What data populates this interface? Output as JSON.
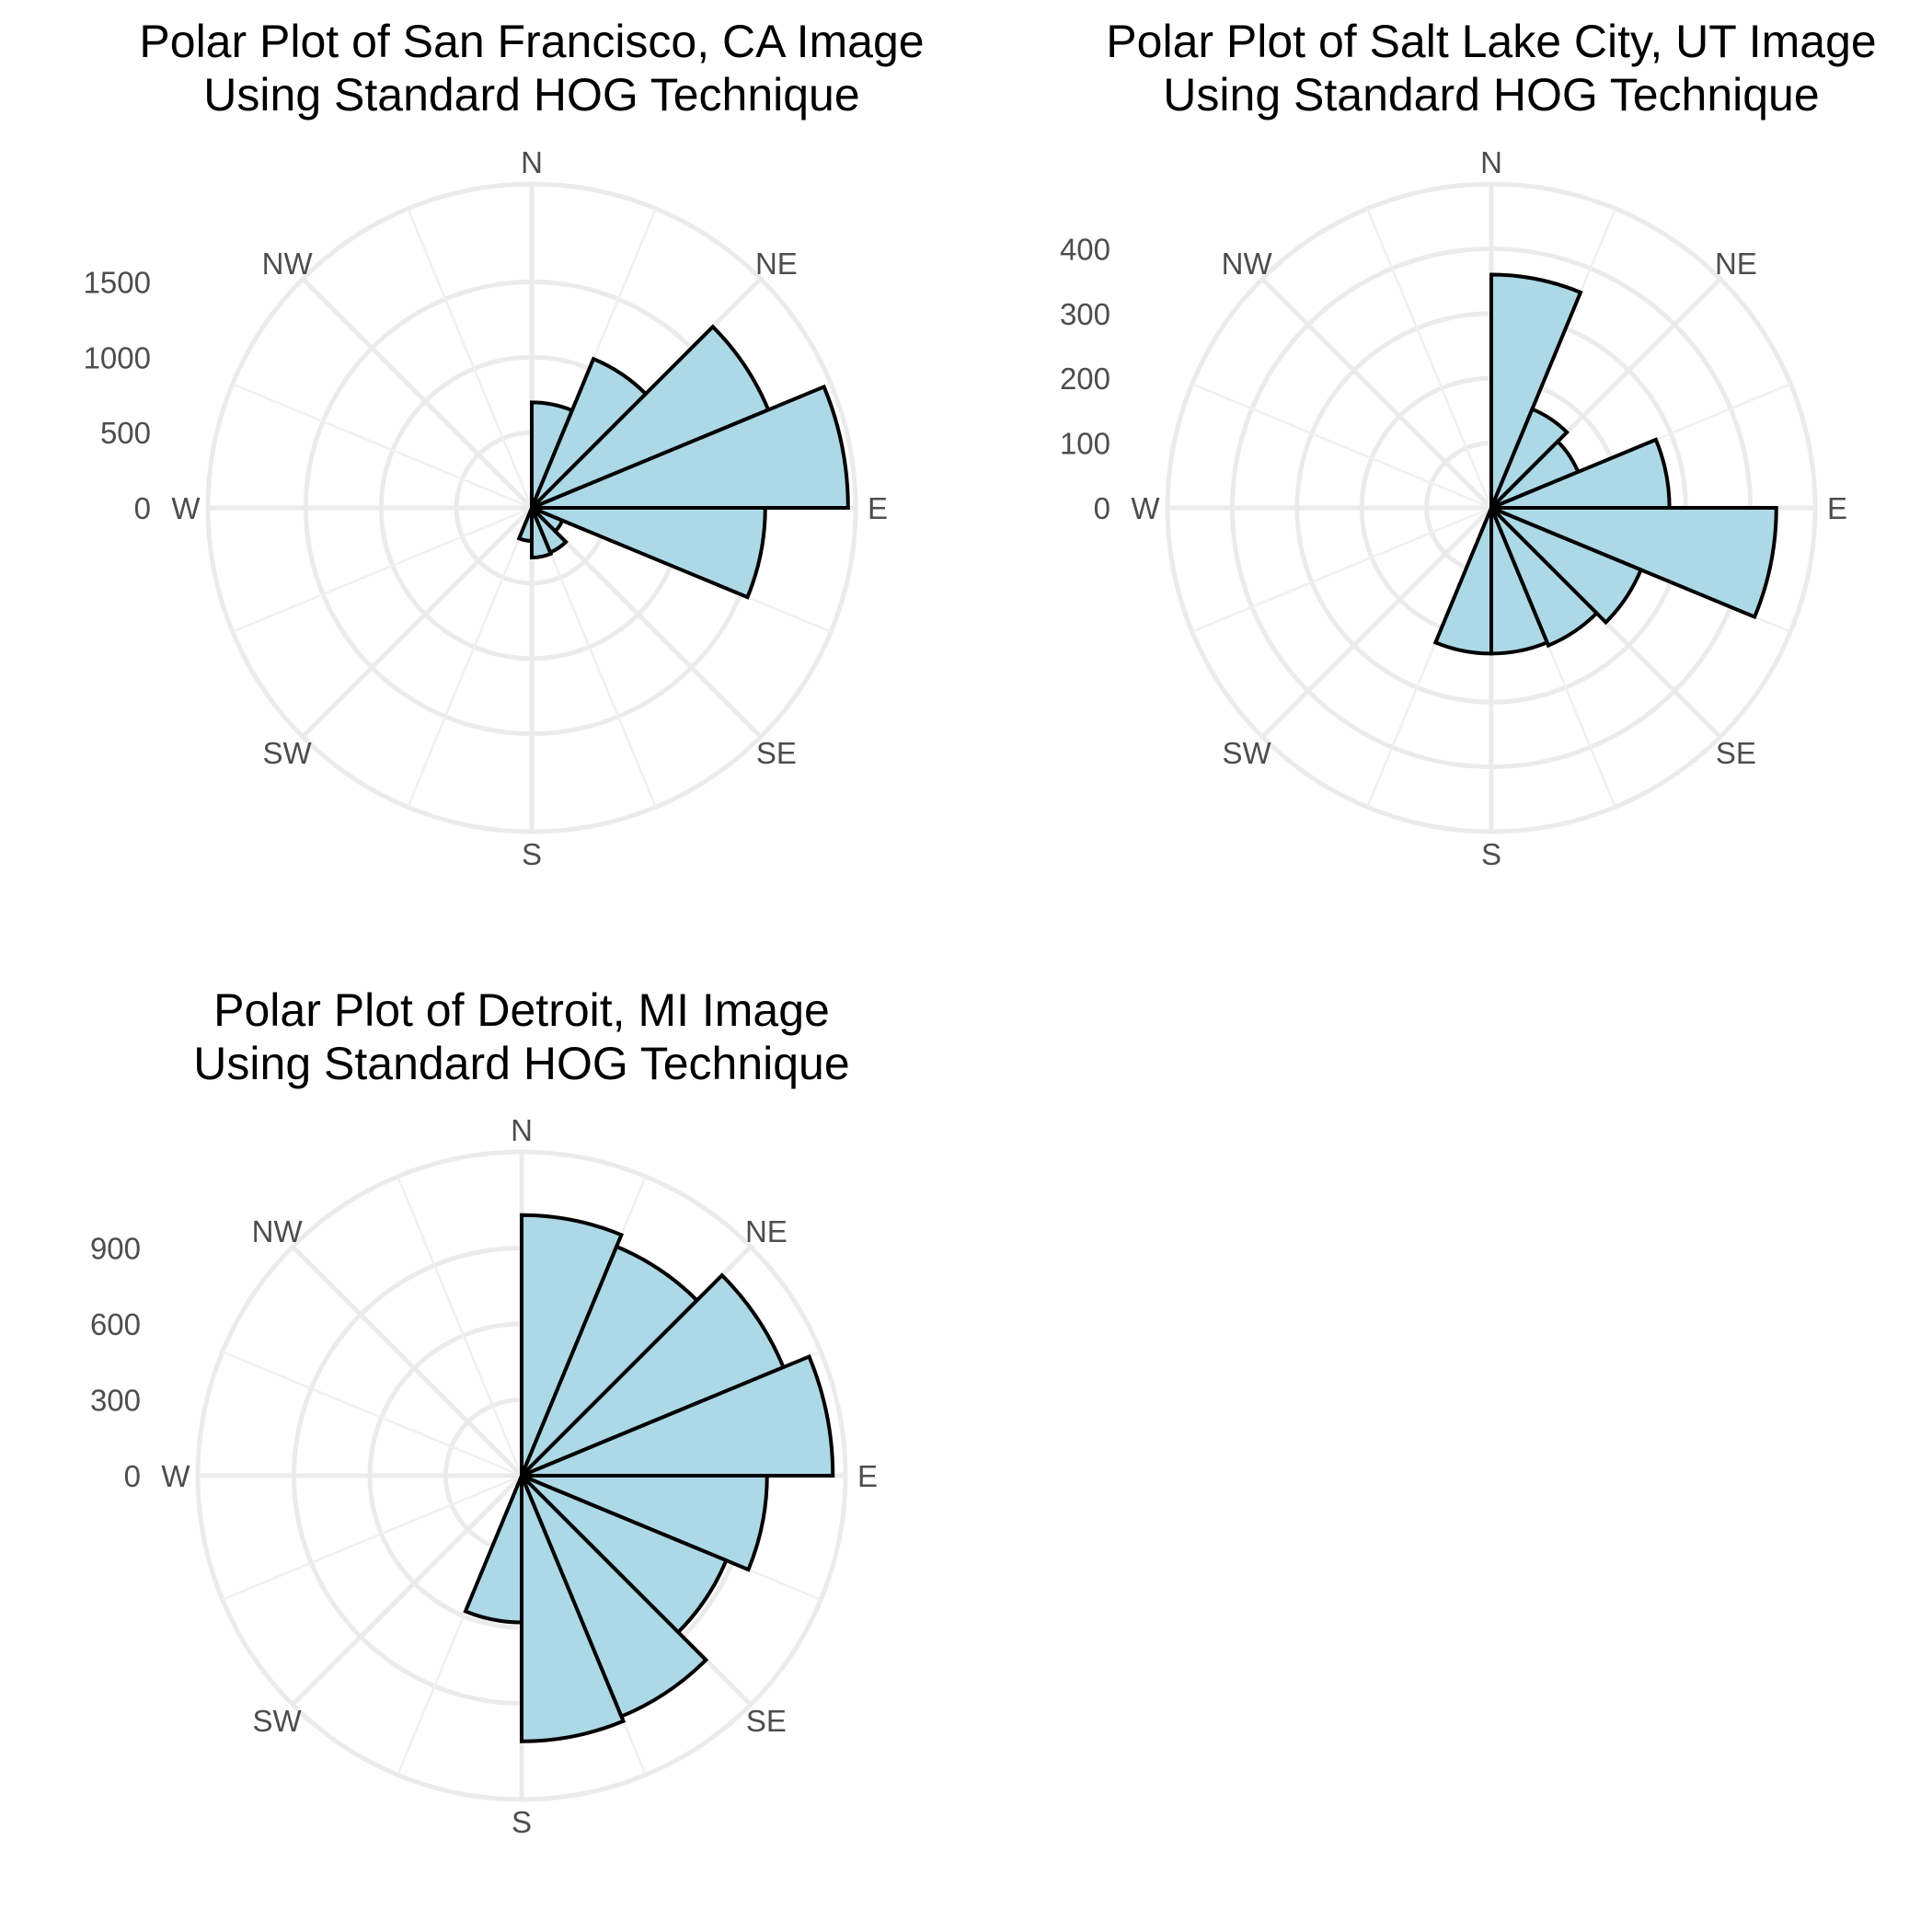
{
  "colors": {
    "bar_fill": "#add8e6",
    "bar_stroke": "#000000",
    "grid": "#ebebeb",
    "background": "#ffffff"
  },
  "chart_data": [
    {
      "type": "bar",
      "coord": "polar",
      "title": [
        "Polar Plot of San Francisco, CA Image",
        "Using Standard HOG Technique"
      ],
      "direction_labels": [
        "N",
        "NE",
        "E",
        "SE",
        "S",
        "SW",
        "W",
        "NW"
      ],
      "bin_count": 16,
      "values": [
        700,
        1070,
        1700,
        2100,
        1550,
        220,
        320,
        330,
        220,
        0,
        0,
        0,
        0,
        0,
        0,
        0
      ],
      "r_ticks": [
        "0",
        "500",
        "1000",
        "1500"
      ],
      "rlim": [
        0,
        2150
      ],
      "grid": true
    },
    {
      "type": "bar",
      "coord": "polar",
      "title": [
        "Polar Plot of Salt Lake City, UT Image",
        "Using Standard HOG Technique"
      ],
      "direction_labels": [
        "N",
        "NE",
        "E",
        "SE",
        "S",
        "SW",
        "W",
        "NW"
      ],
      "bin_count": 16,
      "values": [
        360,
        165,
        145,
        275,
        440,
        250,
        230,
        225,
        225,
        0,
        0,
        0,
        0,
        0,
        0,
        0
      ],
      "r_ticks": [
        "0",
        "100",
        "200",
        "300",
        "400"
      ],
      "rlim": [
        0,
        500
      ],
      "grid": true
    },
    {
      "type": "bar",
      "coord": "polar",
      "title": [
        "Polar Plot of Detroit, MI Image",
        "Using Standard HOG Technique"
      ],
      "direction_labels": [
        "N",
        "NE",
        "E",
        "SE",
        "S",
        "SW",
        "W",
        "NW"
      ],
      "bin_count": 16,
      "values": [
        1030,
        980,
        1120,
        1230,
        970,
        875,
        1030,
        1050,
        580,
        0,
        0,
        0,
        0,
        0,
        0,
        0
      ],
      "r_ticks": [
        "0",
        "300",
        "600",
        "900"
      ],
      "rlim": [
        0,
        1280
      ],
      "grid": true
    }
  ]
}
